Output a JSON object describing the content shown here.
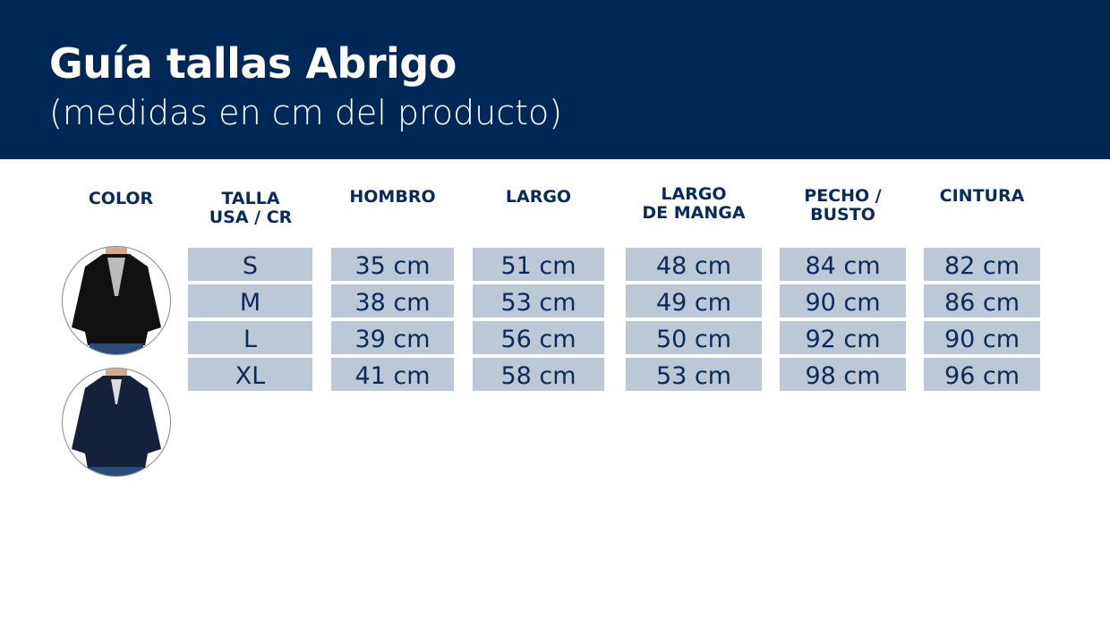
{
  "title": "Guía tallas Abrigo",
  "subtitle": "(medidas en cm del producto)",
  "colors": {
    "banner": "#002856",
    "cell": "#bcc8d6",
    "text": "#0a2a5c"
  },
  "headers": {
    "color": "COLOR",
    "talla": [
      "TALLA",
      "USA / CR"
    ],
    "hombro": "HOMBRO",
    "largo": "LARGO",
    "manga": [
      "LARGO",
      "DE MANGA"
    ],
    "pecho": [
      "PECHO /",
      "BUSTO"
    ],
    "cintura": "CINTURA"
  },
  "swatches": [
    {
      "name": "black-jacket",
      "color": "#111111"
    },
    {
      "name": "navy-jacket",
      "color": "#15213a"
    }
  ],
  "rows": [
    {
      "talla": "S",
      "hombro": "35 cm",
      "largo": "51 cm",
      "manga": "48 cm",
      "pecho": "84 cm",
      "cintura": "82 cm"
    },
    {
      "talla": "M",
      "hombro": "38 cm",
      "largo": "53 cm",
      "manga": "49 cm",
      "pecho": "90 cm",
      "cintura": "86 cm"
    },
    {
      "talla": "L",
      "hombro": "39 cm",
      "largo": "56 cm",
      "manga": "50 cm",
      "pecho": "92 cm",
      "cintura": "90 cm"
    },
    {
      "talla": "XL",
      "hombro": "41 cm",
      "largo": "58 cm",
      "manga": "53 cm",
      "pecho": "98 cm",
      "cintura": "96 cm"
    }
  ]
}
